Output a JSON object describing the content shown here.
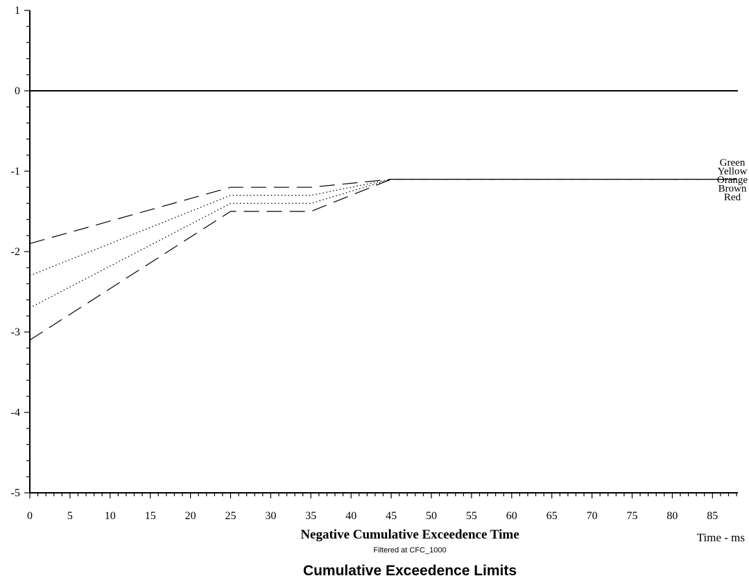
{
  "chart_data": {
    "type": "line",
    "title": "Cumulative Exceedence Limits",
    "subtitle": "Filtered at CFC_1000",
    "xlabel": "Negative Cumulative Exceedence Time",
    "xunit_label": "Time - ms",
    "xlim": [
      0,
      88
    ],
    "ylim": [
      -5,
      1
    ],
    "x_ticks": [
      0,
      5,
      10,
      15,
      20,
      25,
      30,
      35,
      40,
      45,
      50,
      55,
      60,
      65,
      70,
      75,
      80,
      85
    ],
    "y_ticks": [
      1,
      0,
      -1,
      -2,
      -3,
      -4,
      -5
    ],
    "grid": false,
    "legend_position": "right",
    "legend_labels": [
      "Green",
      "Yellow",
      "Orange",
      "Brown",
      "Red"
    ],
    "reference_line": {
      "y": 0
    },
    "series": [
      {
        "name": "Green",
        "style": "dashed",
        "x": [
          0,
          25,
          35,
          45,
          88
        ],
        "y": [
          -1.9,
          -1.2,
          -1.2,
          -1.1,
          -1.1
        ]
      },
      {
        "name": "Yellow",
        "style": "dotted",
        "x": [
          0,
          25,
          35,
          45,
          88
        ],
        "y": [
          -2.3,
          -1.3,
          -1.3,
          -1.1,
          -1.1
        ]
      },
      {
        "name": "Orange",
        "style": "solid-thin",
        "x": [
          45,
          88
        ],
        "y": [
          -1.1,
          -1.1
        ]
      },
      {
        "name": "Brown",
        "style": "dotted",
        "x": [
          0,
          25,
          35,
          45,
          88
        ],
        "y": [
          -2.7,
          -1.4,
          -1.4,
          -1.1,
          -1.1
        ]
      },
      {
        "name": "Red",
        "style": "dashed",
        "x": [
          0,
          25,
          35,
          45,
          88
        ],
        "y": [
          -3.1,
          -1.5,
          -1.5,
          -1.1,
          -1.1
        ]
      }
    ]
  }
}
